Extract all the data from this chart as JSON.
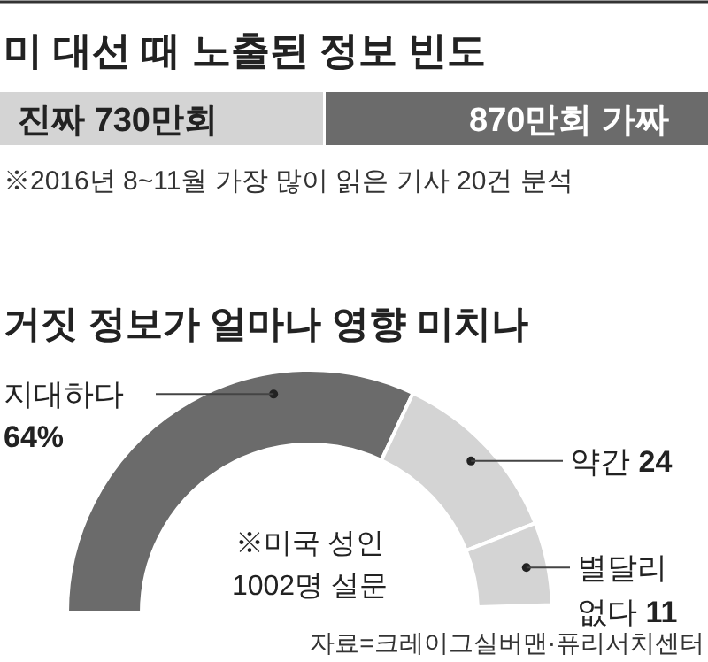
{
  "chart_data": [
    {
      "type": "bar",
      "title": "미 대선 때 노출된 정보 빈도",
      "orientation": "horizontal",
      "stacked": true,
      "categories": [
        null
      ],
      "xlim": [
        0,
        1600
      ],
      "series": [
        {
          "color": "#d4d4d4",
          "values": [
            730
          ],
          "value_labels": [
            "진짜 730만회"
          ]
        },
        {
          "color": "#6b6b6b",
          "values": [
            870
          ],
          "value_labels": [
            "870만회 가짜"
          ]
        }
      ],
      "annotations": [
        "※2016년 8~11월 가장 많이 읽은 기사 20건 분석"
      ]
    },
    {
      "type": "donut",
      "title": "거짓 정보가 얼마나 영향 미치나",
      "categories": [
        "지대하다",
        "약간",
        "별달리 없다"
      ],
      "values": [
        64,
        24,
        11
      ],
      "colors": [
        "#6b6b6b",
        "#d4d4d4",
        "#d4d4d4"
      ],
      "value_labels": [
        "64%",
        "24",
        "11"
      ],
      "annotations": [
        "※미국 성인 1002명 설문",
        "자료=크레이그실버맨·퓨리서치센터"
      ]
    }
  ]
}
